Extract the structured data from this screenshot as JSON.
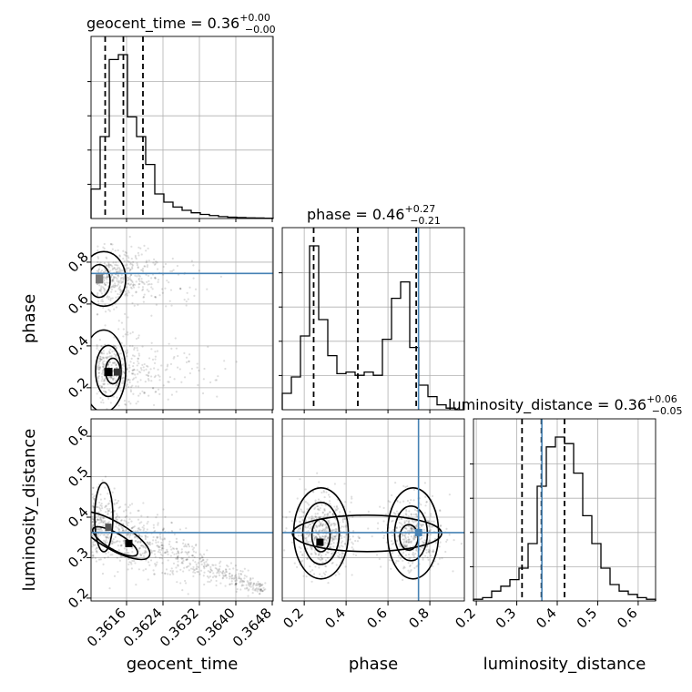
{
  "colors": {
    "truth": "#4682b4",
    "density": "#000000",
    "grid": "#b0b0b0"
  },
  "chart_data": {
    "type": "corner",
    "parameters": [
      "geocent_time",
      "phase",
      "luminosity_distance"
    ],
    "titles": [
      {
        "param": "geocent_time",
        "text": "geocent_time = 0.36",
        "plus": "+0.00",
        "minus": "−0.00"
      },
      {
        "param": "phase",
        "text": "phase = 0.46",
        "plus": "+0.27",
        "minus": "−0.21"
      },
      {
        "param": "luminosity_distance",
        "text": "luminosity_distance = 0.36",
        "plus": "+0.06",
        "minus": "−0.05"
      }
    ],
    "axis_labels": {
      "x": [
        "geocent_time",
        "phase",
        "luminosity_distance"
      ],
      "y": [
        "phase",
        "luminosity_distance"
      ]
    },
    "ticks": {
      "geocent_time": {
        "values": [
          0.3616,
          0.3624,
          0.3632,
          0.364,
          0.3648
        ],
        "labels": [
          "0.3616",
          "0.3624",
          "0.3632",
          "0.3640",
          "0.3648"
        ]
      },
      "phase": {
        "values": [
          0.2,
          0.4,
          0.6,
          0.8
        ],
        "labels": [
          "0.2",
          "0.4",
          "0.6",
          "0.8"
        ]
      },
      "luminosity_distance": {
        "values": [
          0.2,
          0.3,
          0.4,
          0.5,
          0.6
        ],
        "labels": [
          "0.2",
          "0.3",
          "0.4",
          "0.5",
          "0.6"
        ]
      }
    },
    "ranges": {
      "geocent_time": [
        0.36082,
        0.36482
      ],
      "phase": [
        0.095,
        0.965
      ],
      "luminosity_distance": [
        0.193,
        0.643
      ]
    },
    "truths": {
      "geocent_time": null,
      "phase": 0.746,
      "luminosity_distance": 0.362
    },
    "quantiles": {
      "geocent_time": [
        0.36113,
        0.36153,
        0.36196
      ],
      "phase": [
        0.245,
        0.456,
        0.735
      ],
      "luminosity_distance": [
        0.313,
        0.361,
        0.418
      ]
    },
    "histograms": {
      "geocent_time": [
        0.18,
        0.5,
        0.97,
        1.0,
        0.62,
        0.5,
        0.33,
        0.15,
        0.1,
        0.07,
        0.05,
        0.035,
        0.025,
        0.018,
        0.012,
        0.008,
        0.006,
        0.004,
        0.003,
        0.002
      ],
      "phase": [
        0.1,
        0.2,
        0.45,
        1.0,
        0.55,
        0.33,
        0.22,
        0.23,
        0.21,
        0.23,
        0.21,
        0.43,
        0.68,
        0.78,
        0.38,
        0.15,
        0.08,
        0.03,
        0.01,
        0.0
      ],
      "luminosity_distance": [
        0.01,
        0.02,
        0.06,
        0.09,
        0.13,
        0.2,
        0.35,
        0.7,
        0.94,
        1.0,
        0.96,
        0.78,
        0.52,
        0.35,
        0.2,
        0.1,
        0.06,
        0.04,
        0.02,
        0.01
      ]
    },
    "grid": true
  }
}
